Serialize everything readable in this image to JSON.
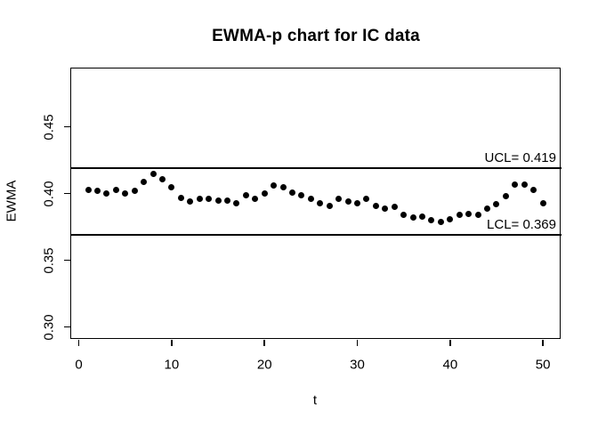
{
  "chart": {
    "title": "EWMA-p chart for IC data",
    "xlabel": "t",
    "ylabel": "EWMA",
    "ucl_label": "UCL= 0.419",
    "lcl_label": "LCL= 0.369"
  },
  "colors": {
    "point": "#000000",
    "line": "#000000",
    "text": "#000000",
    "background": "#ffffff"
  },
  "chart_data": {
    "type": "scatter",
    "title": "EWMA-p chart for IC data",
    "xlabel": "t",
    "ylabel": "EWMA",
    "x": [
      1,
      2,
      3,
      4,
      5,
      6,
      7,
      8,
      9,
      10,
      11,
      12,
      13,
      14,
      15,
      16,
      17,
      18,
      19,
      20,
      21,
      22,
      23,
      24,
      25,
      26,
      27,
      28,
      29,
      30,
      31,
      32,
      33,
      34,
      35,
      36,
      37,
      38,
      39,
      40,
      41,
      42,
      43,
      44,
      45,
      46,
      47,
      48,
      49,
      50
    ],
    "y": [
      0.403,
      0.402,
      0.4,
      0.403,
      0.4,
      0.402,
      0.409,
      0.415,
      0.411,
      0.405,
      0.397,
      0.394,
      0.396,
      0.396,
      0.395,
      0.395,
      0.393,
      0.399,
      0.396,
      0.4,
      0.406,
      0.405,
      0.401,
      0.399,
      0.396,
      0.393,
      0.391,
      0.396,
      0.394,
      0.393,
      0.396,
      0.391,
      0.389,
      0.39,
      0.384,
      0.382,
      0.383,
      0.38,
      0.379,
      0.381,
      0.384,
      0.385,
      0.384,
      0.389,
      0.392,
      0.398,
      0.407,
      0.407,
      0.403,
      0.393
    ],
    "ucl": 0.419,
    "lcl": 0.369,
    "ucl_label": "UCL= 0.419",
    "lcl_label": "LCL= 0.369",
    "xticks": [
      0,
      10,
      20,
      30,
      40,
      50
    ],
    "xtick_labels": [
      "0",
      "10",
      "20",
      "30",
      "40",
      "50"
    ],
    "yticks": [
      0.3,
      0.35,
      0.4,
      0.45
    ],
    "ytick_labels": [
      "0.30",
      "0.35",
      "0.40",
      "0.45"
    ],
    "xlim": [
      -0.92,
      52.0
    ],
    "ylim": [
      0.2904,
      0.4945
    ],
    "grid": false,
    "legend": null
  }
}
